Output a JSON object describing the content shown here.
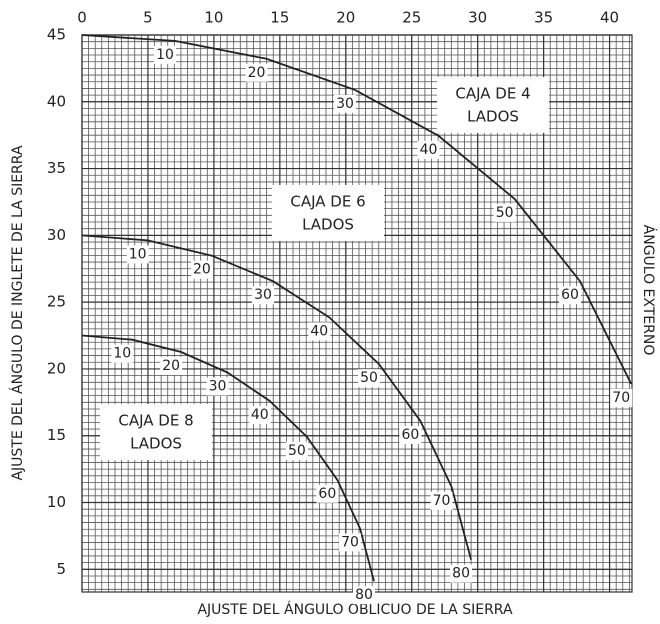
{
  "chart_data": {
    "type": "line",
    "x_label": "AJUSTE DEL ÁNGULO OBLICUO DE LA SIERRA",
    "y_label": "AJUSTE DEL ÁNGULO DE INGLETE DE LA SIERRA",
    "right_label": "ÁNGULO EXTERNO",
    "xlim": [
      0,
      41.7
    ],
    "xticks": [
      0,
      5,
      10,
      15,
      20,
      25,
      30,
      35,
      40
    ],
    "ylim": [
      3.3,
      45
    ],
    "yticks": [
      5,
      10,
      15,
      20,
      25,
      30,
      35,
      40,
      45
    ],
    "grid": true,
    "series": [
      {
        "color": "#222222",
        "x": [
          0,
          7.05,
          13.99,
          20.7,
          27.03,
          32.8,
          37.76,
          41.64
        ],
        "values": [
          45,
          44.56,
          43.22,
          40.89,
          37.45,
          32.73,
          26.57,
          18.88
        ],
        "angles": [
          null,
          10,
          20,
          30,
          40,
          50,
          60,
          70
        ]
      },
      {
        "color": "#222222",
        "x": [
          0,
          4.98,
          9.85,
          14.48,
          18.75,
          22.52,
          25.66,
          28.02,
          29.5
        ],
        "values": [
          30,
          29.62,
          28.48,
          26.57,
          23.86,
          20.36,
          16.1,
          11.17,
          5.72
        ],
        "angles": [
          null,
          10,
          20,
          30,
          40,
          50,
          60,
          70,
          80
        ]
      },
      {
        "color": "#222222",
        "x": [
          0,
          3.81,
          7.52,
          11.03,
          14.24,
          17.05,
          19.36,
          21.08,
          22.14
        ],
        "values": [
          22.5,
          22.19,
          21.27,
          19.73,
          17.6,
          14.91,
          11.7,
          8.06,
          4.11
        ],
        "angles": [
          null,
          10,
          20,
          30,
          40,
          50,
          60,
          70,
          80
        ]
      }
    ],
    "annotations": [
      [
        "CAJA DE 4",
        "LADOS"
      ],
      [
        "CAJA DE 6",
        "LADOS"
      ],
      [
        "CAJA DE 8",
        "LADOS"
      ]
    ]
  }
}
